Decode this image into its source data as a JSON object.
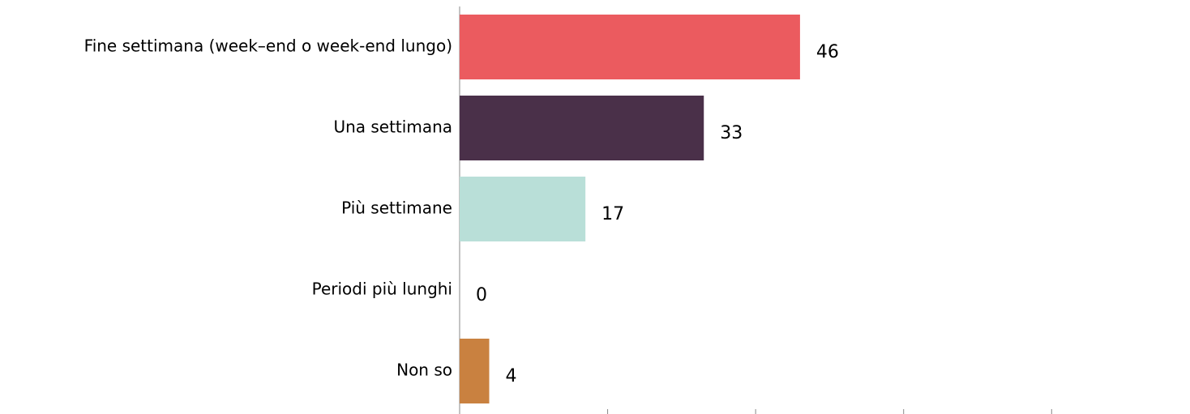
{
  "chart_data": {
    "type": "hbar",
    "categories": [
      "Fine settimana (week–end o week-end lungo)",
      "Una settimana",
      "Più settimane",
      "Periodi più lunghi",
      "Non so"
    ],
    "values": [
      46,
      33,
      17,
      0,
      4
    ],
    "colors": [
      "#eb5b5f",
      "#4a3049",
      "#b9dfd8",
      "#d0d0d0",
      "#c98140"
    ],
    "xlim": [
      0,
      98.7
    ],
    "xticks": [
      0,
      20,
      40,
      60,
      80
    ]
  }
}
